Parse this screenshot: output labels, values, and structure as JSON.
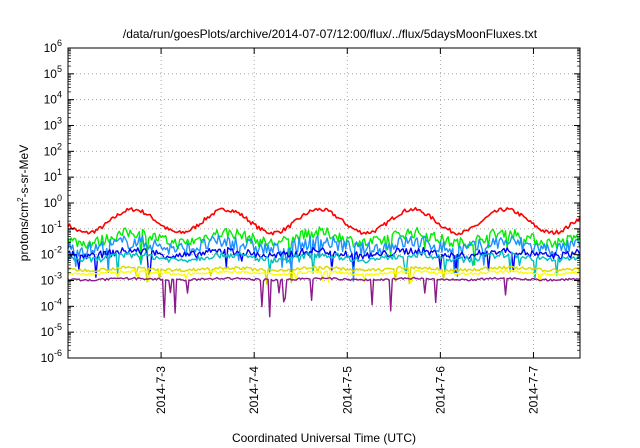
{
  "chart_data": {
    "type": "line",
    "title": "/data/run/goesPlots/archive/2014-07-07/12:00/flux/../flux/5daysMoonFluxes.txt",
    "xlabel": "Coordinated Universal Time (UTC)",
    "ylabel": {
      "base": "protons/cm",
      "sup": "2",
      "rest": "-s-sr-MeV"
    },
    "yscale": "log",
    "ylim_exponents": [
      -6,
      6
    ],
    "y_ticks": [
      {
        "base": "10",
        "exp": "-6"
      },
      {
        "base": "10",
        "exp": "-5"
      },
      {
        "base": "10",
        "exp": "-4"
      },
      {
        "base": "10",
        "exp": "-3"
      },
      {
        "base": "10",
        "exp": "-2"
      },
      {
        "base": "10",
        "exp": "-1"
      },
      {
        "base": "10",
        "exp": "0"
      },
      {
        "base": "10",
        "exp": "1"
      },
      {
        "base": "10",
        "exp": "2"
      },
      {
        "base": "10",
        "exp": "3"
      },
      {
        "base": "10",
        "exp": "4"
      },
      {
        "base": "10",
        "exp": "5"
      },
      {
        "base": "10",
        "exp": "6"
      }
    ],
    "x_range_days": [
      0,
      5.5
    ],
    "x_ticks": [
      {
        "label": "2014-7-3",
        "day": 1
      },
      {
        "label": "2014-7-4",
        "day": 2
      },
      {
        "label": "2014-7-5",
        "day": 3
      },
      {
        "label": "2014-7-6",
        "day": 4
      },
      {
        "label": "2014-7-7",
        "day": 5
      }
    ],
    "grid": true,
    "series": [
      {
        "color": "#ff0000",
        "level": -0.7,
        "amp": 0.45,
        "noise": 0.08,
        "dips": 0
      },
      {
        "color": "#00ee00",
        "level": -1.35,
        "amp": 0.2,
        "noise": 0.22,
        "dips": 0.6
      },
      {
        "color": "#1e90ff",
        "level": -1.65,
        "amp": 0.15,
        "noise": 0.28,
        "dips": 0.7
      },
      {
        "color": "#0000ff",
        "level": -1.95,
        "amp": 0.1,
        "noise": 0.15,
        "dips": 0.6
      },
      {
        "color": "#00bfbf",
        "level": -2.1,
        "amp": 0.1,
        "noise": 0.12,
        "dips": 0.5
      },
      {
        "color": "#d9d900",
        "level": -2.55,
        "amp": 0.05,
        "noise": 0.06,
        "dips": 0.4
      },
      {
        "color": "#ffff00",
        "level": -2.7,
        "amp": 0.05,
        "noise": 0.05,
        "dips": 0.3
      },
      {
        "color": "#8b1a8b",
        "level": -2.95,
        "amp": 0.03,
        "noise": 0.04,
        "dips": 1.0
      }
    ]
  }
}
